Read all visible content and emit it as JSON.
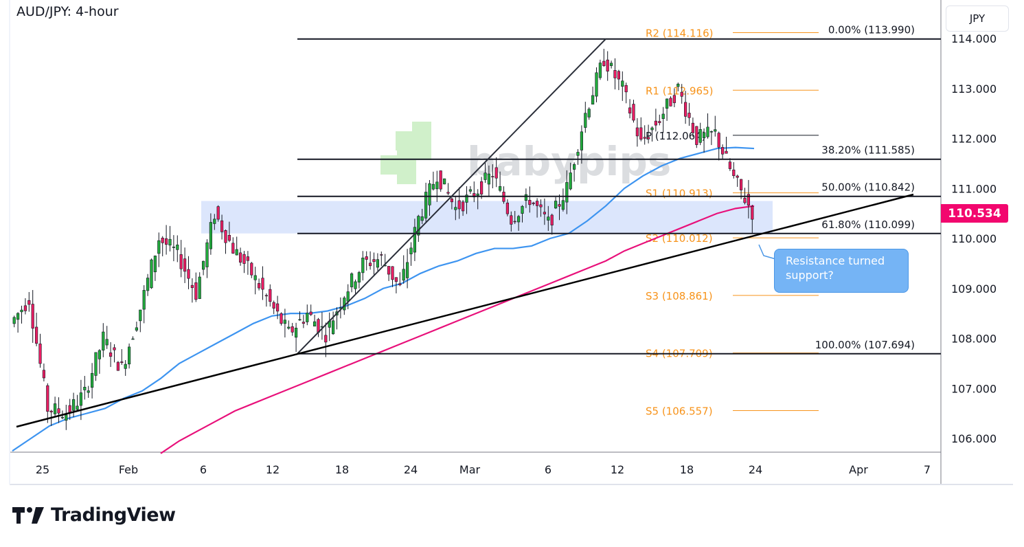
{
  "title": "AUD/JPY: 4-hour",
  "currency": "JPY",
  "last_price": "110.534",
  "callout": "Resistance turned support?",
  "brand": "TradingView",
  "watermark": "babypips",
  "colors": {
    "up": "#22ab3c",
    "down": "#e91e63",
    "ma_fast": "#3d94f0",
    "ma_slow": "#e8107a",
    "pivot": "#f7931a",
    "zone": "#dce6fc",
    "last": "#f2076e"
  },
  "chart_data": {
    "type": "candlestick",
    "y_ticks": [
      "114.000",
      "113.000",
      "112.000",
      "111.000",
      "110.000",
      "109.000",
      "108.000",
      "107.000",
      "106.000"
    ],
    "x_ticks": [
      "25",
      "Feb",
      "6",
      "12",
      "18",
      "24",
      "Mar",
      "6",
      "12",
      "18",
      "24",
      "Apr",
      "7"
    ],
    "closes": [
      108.3,
      108.8,
      106.6,
      106.5,
      106.9,
      108.0,
      107.4,
      108.6,
      110.0,
      109.7,
      108.9,
      110.5,
      109.8,
      109.3,
      108.7,
      108.1,
      108.5,
      108.1,
      108.9,
      109.5,
      109.6,
      109.0,
      110.4,
      111.3,
      110.6,
      110.9,
      111.3,
      110.4,
      110.8,
      110.3,
      111.0,
      112.5,
      113.6,
      113.0,
      111.9,
      112.4,
      113.0,
      112.0,
      112.1,
      111.2,
      110.534
    ],
    "ma_fast": [
      105.75,
      106.0,
      106.25,
      106.4,
      106.5,
      106.6,
      106.8,
      106.95,
      107.2,
      107.5,
      107.7,
      107.9,
      108.1,
      108.3,
      108.45,
      108.5,
      108.5,
      108.55,
      108.65,
      108.8,
      109.0,
      109.1,
      109.3,
      109.45,
      109.55,
      109.7,
      109.8,
      109.8,
      109.85,
      110.0,
      110.1,
      110.35,
      110.65,
      111.0,
      111.25,
      111.45,
      111.6,
      111.7,
      111.8,
      111.82,
      111.8
    ],
    "ma_slow": [
      null,
      null,
      null,
      null,
      null,
      null,
      null,
      null,
      105.7,
      105.95,
      106.15,
      106.35,
      106.55,
      106.7,
      106.85,
      107.0,
      107.15,
      107.3,
      107.45,
      107.6,
      107.75,
      107.9,
      108.05,
      108.2,
      108.35,
      108.5,
      108.65,
      108.8,
      108.95,
      109.1,
      109.25,
      109.4,
      109.55,
      109.75,
      109.9,
      110.05,
      110.2,
      110.35,
      110.5,
      110.6,
      110.65
    ],
    "fibonacci": [
      {
        "label": "0.00% (113.990)",
        "price": 113.99
      },
      {
        "label": "38.20% (111.585)",
        "price": 111.585
      },
      {
        "label": "50.00% (110.842)",
        "price": 110.842
      },
      {
        "label": "61.80% (110.099)",
        "price": 110.099
      },
      {
        "label": "100.00% (107.694)",
        "price": 107.694
      }
    ],
    "pivots": [
      {
        "label": "R2 (114.116)",
        "price": 114.116,
        "kind": "resistance"
      },
      {
        "label": "R1 (112.965)",
        "price": 112.965,
        "kind": "resistance"
      },
      {
        "label": "P (112.064)",
        "price": 112.064,
        "kind": "pivot"
      },
      {
        "label": "S1 (110.913)",
        "price": 110.913,
        "kind": "support"
      },
      {
        "label": "S2 (110.012)",
        "price": 110.012,
        "kind": "support"
      },
      {
        "label": "S3 (108.861)",
        "price": 108.861,
        "kind": "support"
      },
      {
        "label": "S4 (107.709)",
        "price": 107.709,
        "kind": "support"
      },
      {
        "label": "S5 (106.557)",
        "price": 106.557,
        "kind": "support"
      }
    ],
    "zone": {
      "from": 110.1,
      "to": 110.75
    },
    "ylim": [
      105.7,
      114.7
    ]
  }
}
